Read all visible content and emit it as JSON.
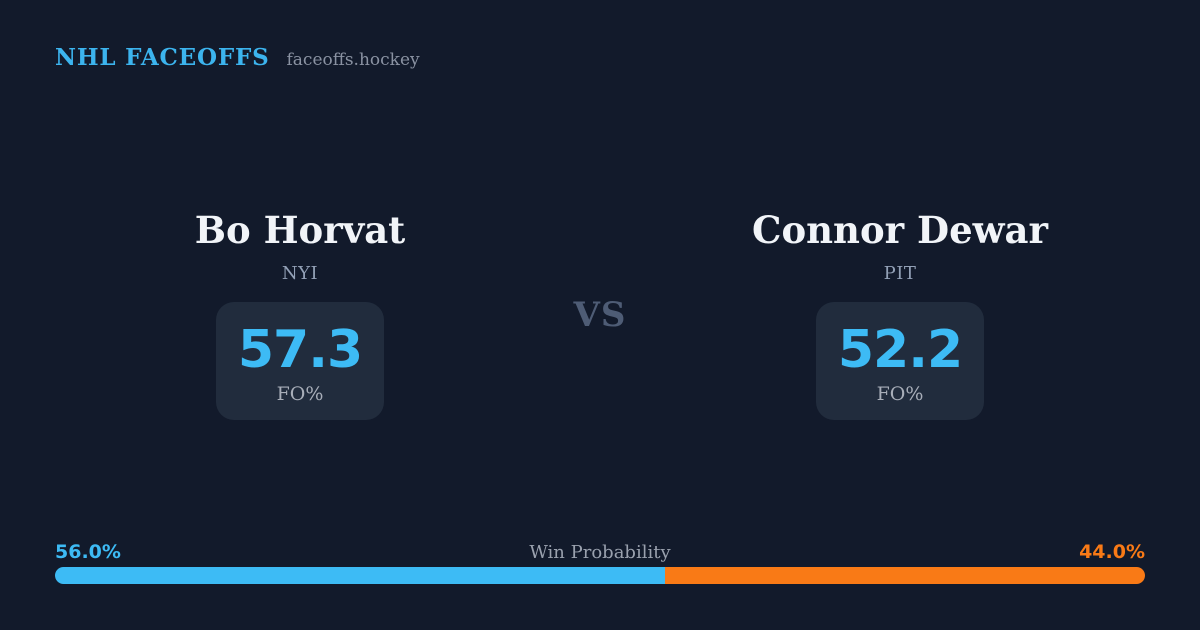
{
  "header": {
    "brand": "NHL FACEOFFS",
    "site": "faceoffs.hockey"
  },
  "vs_label": "VS",
  "players": {
    "left": {
      "name": "Bo Horvat",
      "team": "NYI",
      "stat_value": "57.3",
      "stat_label": "FO%"
    },
    "right": {
      "name": "Connor Dewar",
      "team": "PIT",
      "stat_value": "52.2",
      "stat_label": "FO%"
    }
  },
  "win_probability": {
    "title": "Win Probability",
    "left_label": "56.0%",
    "right_label": "44.0%",
    "left_pct": 56.0,
    "right_pct": 44.0,
    "left_color": "#3DBBF5",
    "right_color": "#F97A16"
  },
  "colors": {
    "background": "#121A2B",
    "card_background": "#212C3D",
    "accent_blue": "#3DBBF5",
    "accent_orange": "#F97A16",
    "brand_blue": "#3CB4EE",
    "name_white": "#F1F4F8",
    "muted_gray": "#9AA1AE"
  }
}
